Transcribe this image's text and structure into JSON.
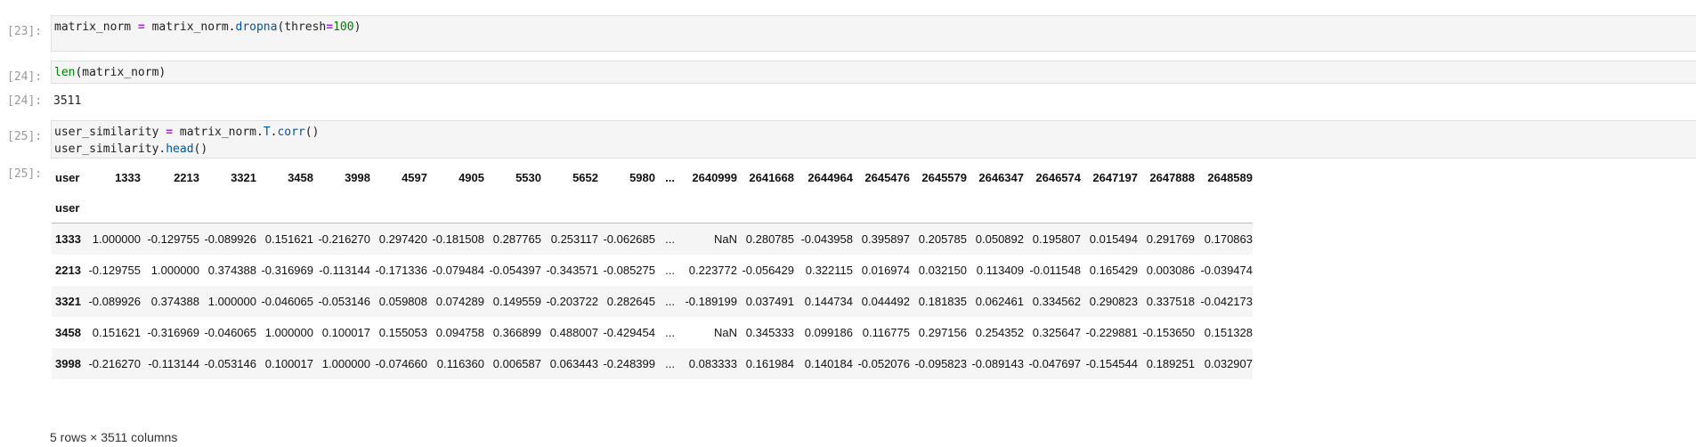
{
  "cells": [
    {
      "prompt": "[23]:",
      "code_lines": [
        [
          {
            "t": "matrix_norm "
          },
          {
            "t": "=",
            "c": "kw-op"
          },
          {
            "t": " matrix_norm."
          },
          {
            "t": "dropna",
            "c": "kw-method"
          },
          {
            "t": "(thresh"
          },
          {
            "t": "=",
            "c": "kw-op"
          },
          {
            "t": "100",
            "c": "kw-num"
          },
          {
            "t": ")"
          }
        ]
      ]
    },
    {
      "prompt": "[24]:",
      "code_lines": [
        [
          {
            "t": "len",
            "c": "kw-builtin"
          },
          {
            "t": "(matrix_norm)"
          }
        ]
      ]
    },
    {
      "prompt": "[25]:",
      "code_lines": [
        [
          {
            "t": "user_similarity "
          },
          {
            "t": "=",
            "c": "kw-op"
          },
          {
            "t": " matrix_norm."
          },
          {
            "t": "T",
            "c": "kw-method"
          },
          {
            "t": "."
          },
          {
            "t": "corr",
            "c": "kw-method"
          },
          {
            "t": "()"
          }
        ],
        [
          {
            "t": "user_similarity."
          },
          {
            "t": "head",
            "c": "kw-method"
          },
          {
            "t": "()"
          }
        ]
      ]
    }
  ],
  "outputs": {
    "out24_prompt": "[24]:",
    "out24_value": "3511",
    "out25_prompt": "[25]:"
  },
  "dataframe": {
    "column_axis_name": "user",
    "row_axis_name": "user",
    "columns": [
      "1333",
      "2213",
      "3321",
      "3458",
      "3998",
      "4597",
      "4905",
      "5530",
      "5652",
      "5980",
      "...",
      "2640999",
      "2641668",
      "2644964",
      "2645476",
      "2645579",
      "2646347",
      "2646574",
      "2647197",
      "2647888",
      "2648589"
    ],
    "rows": [
      {
        "index": "1333",
        "values": [
          "1.000000",
          "-0.129755",
          "-0.089926",
          "0.151621",
          "-0.216270",
          "0.297420",
          "-0.181508",
          "0.287765",
          "0.253117",
          "-0.062685",
          "...",
          "NaN",
          "0.280785",
          "-0.043958",
          "0.395897",
          "0.205785",
          "0.050892",
          "0.195807",
          "0.015494",
          "0.291769",
          "0.170863"
        ]
      },
      {
        "index": "2213",
        "values": [
          "-0.129755",
          "1.000000",
          "0.374388",
          "-0.316969",
          "-0.113144",
          "-0.171336",
          "-0.079484",
          "-0.054397",
          "-0.343571",
          "-0.085275",
          "...",
          "0.223772",
          "-0.056429",
          "0.322115",
          "0.016974",
          "0.032150",
          "0.113409",
          "-0.011548",
          "0.165429",
          "0.003086",
          "-0.039474"
        ]
      },
      {
        "index": "3321",
        "values": [
          "-0.089926",
          "0.374388",
          "1.000000",
          "-0.046065",
          "-0.053146",
          "0.059808",
          "0.074289",
          "0.149559",
          "-0.203722",
          "0.282645",
          "...",
          "-0.189199",
          "0.037491",
          "0.144734",
          "0.044492",
          "0.181835",
          "0.062461",
          "0.334562",
          "0.290823",
          "0.337518",
          "-0.042173"
        ]
      },
      {
        "index": "3458",
        "values": [
          "0.151621",
          "-0.316969",
          "-0.046065",
          "1.000000",
          "0.100017",
          "0.155053",
          "0.094758",
          "0.366899",
          "0.488007",
          "-0.429454",
          "...",
          "NaN",
          "0.345333",
          "0.099186",
          "0.116775",
          "0.297156",
          "0.254352",
          "0.325647",
          "-0.229881",
          "-0.153650",
          "0.151328"
        ]
      },
      {
        "index": "3998",
        "values": [
          "-0.216270",
          "-0.113144",
          "-0.053146",
          "0.100017",
          "1.000000",
          "-0.074660",
          "0.116360",
          "0.006587",
          "0.063443",
          "-0.248399",
          "...",
          "0.083333",
          "0.161984",
          "0.140184",
          "-0.052076",
          "-0.095823",
          "-0.089143",
          "-0.047697",
          "-0.154544",
          "0.189251",
          "0.032907"
        ]
      }
    ],
    "shape_text": "5 rows × 3511 columns"
  }
}
